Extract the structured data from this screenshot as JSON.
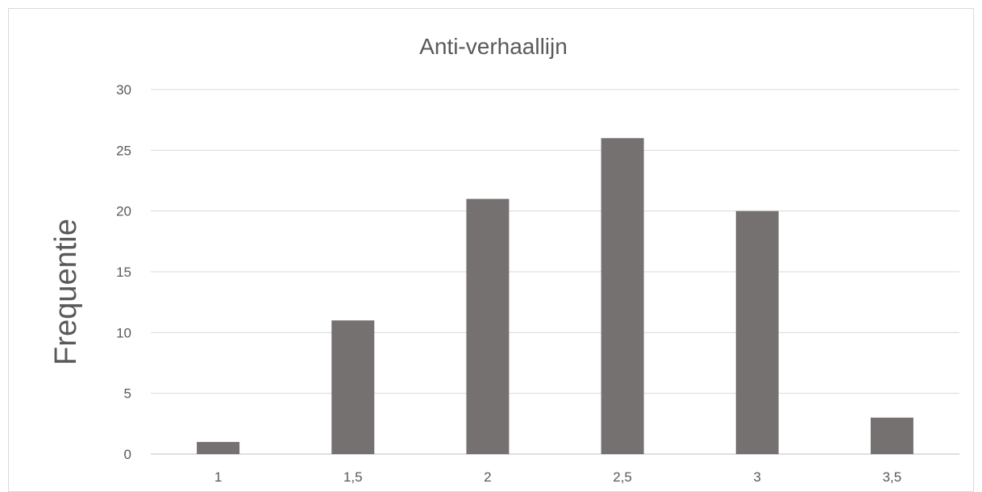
{
  "chart_data": {
    "type": "bar",
    "title": "Anti-verhaallijn",
    "xlabel": "",
    "ylabel": "Frequentie",
    "categories": [
      "1",
      "1,5",
      "2",
      "2,5",
      "3",
      "3,5"
    ],
    "values": [
      1,
      11,
      21,
      26,
      20,
      3
    ],
    "ylim": [
      0,
      30
    ],
    "yticks": [
      "0",
      "5",
      "10",
      "15",
      "20",
      "25",
      "30"
    ],
    "grid": true,
    "legend": "none",
    "bar_color": "#767171"
  }
}
